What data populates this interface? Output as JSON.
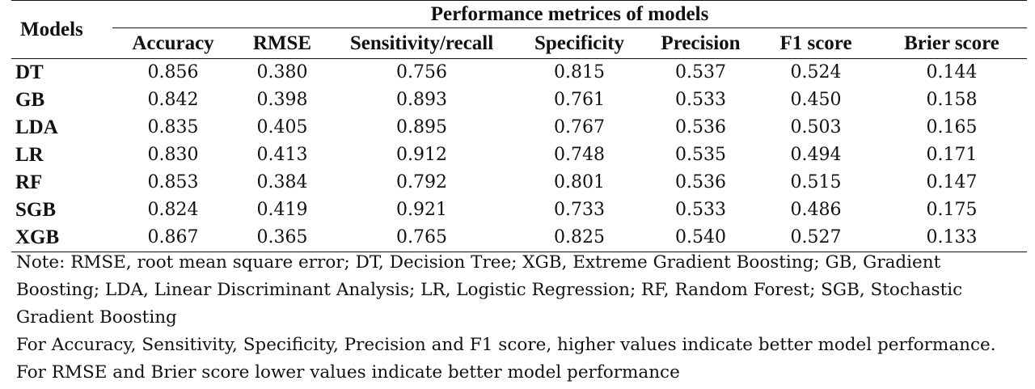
{
  "table": {
    "group_header": "Performance metrices of models",
    "row_header": "Models",
    "columns": [
      "Accuracy",
      "RMSE",
      "Sensitivity/recall",
      "Specificity",
      "Precision",
      "F1 score",
      "Brier score"
    ],
    "rows": [
      {
        "model": "DT",
        "values": [
          "0.856",
          "0.380",
          "0.756",
          "0.815",
          "0.537",
          "0.524",
          "0.144"
        ]
      },
      {
        "model": "GB",
        "values": [
          "0.842",
          "0.398",
          "0.893",
          "0.761",
          "0.533",
          "0.450",
          "0.158"
        ]
      },
      {
        "model": "LDA",
        "values": [
          "0.835",
          "0.405",
          "0.895",
          "0.767",
          "0.536",
          "0.503",
          "0.165"
        ]
      },
      {
        "model": "LR",
        "values": [
          "0.830",
          "0.413",
          "0.912",
          "0.748",
          "0.535",
          "0.494",
          "0.171"
        ]
      },
      {
        "model": "RF",
        "values": [
          "0.853",
          "0.384",
          "0.792",
          "0.801",
          "0.536",
          "0.515",
          "0.147"
        ]
      },
      {
        "model": "SGB",
        "values": [
          "0.824",
          "0.419",
          "0.921",
          "0.733",
          "0.533",
          "0.486",
          "0.175"
        ]
      },
      {
        "model": "XGB",
        "values": [
          "0.867",
          "0.365",
          "0.765",
          "0.825",
          "0.540",
          "0.527",
          "0.133"
        ]
      }
    ]
  },
  "notes": {
    "abbreviations": "Note: RMSE, root mean square error; DT, Decision Tree; XGB, Extreme Gradient Boosting; GB, Gradient Boosting; LDA, Linear Discriminant Analysis; LR, Logistic Regression; RF, Random Forest; SGB, Stochastic Gradient Boosting",
    "higher_better": "For Accuracy, Sensitivity, Specificity, Precision and F1 score, higher values indicate better model performance.",
    "lower_better": "For RMSE and Brier score lower values indicate better model performance"
  }
}
